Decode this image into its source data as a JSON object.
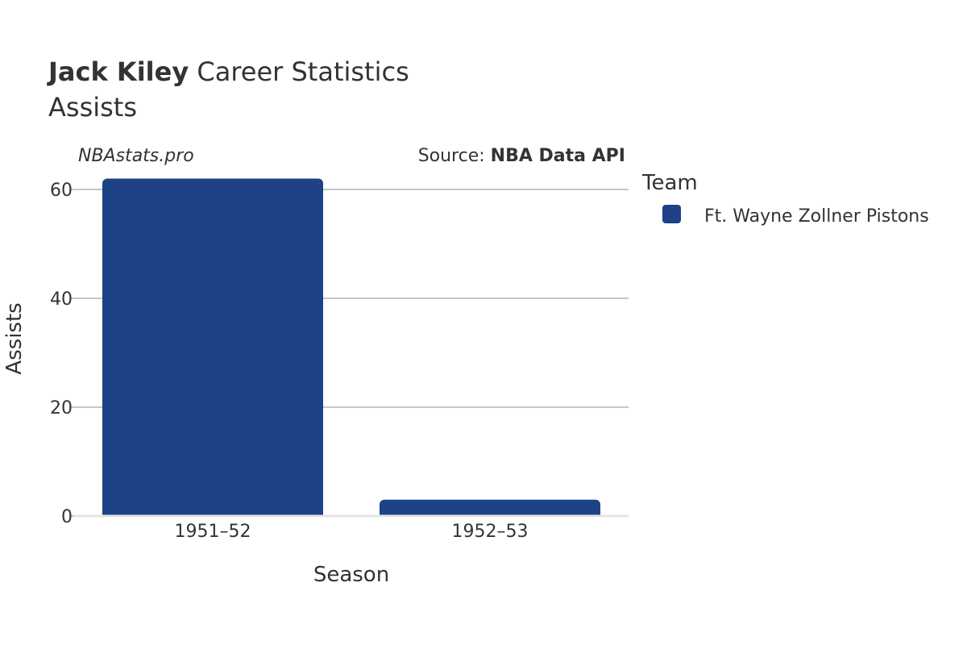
{
  "title": {
    "player": "Jack Kiley",
    "rest": " Career Statistics",
    "subtitle": "Assists"
  },
  "credits": {
    "site": "NBAstats.pro",
    "source_prefix": "Source: ",
    "source_name": "NBA Data API"
  },
  "legend": {
    "title": "Team",
    "items": [
      {
        "label": "Ft. Wayne Zollner Pistons",
        "color": "#1d4286"
      }
    ]
  },
  "chart_data": {
    "type": "bar",
    "categories": [
      "1951–52",
      "1952–53"
    ],
    "series": [
      {
        "name": "Ft. Wayne Zollner Pistons",
        "values": [
          62,
          3
        ],
        "color": "#1d4286"
      }
    ],
    "xlabel": "Season",
    "ylabel": "Assists",
    "ylim": [
      0,
      60
    ],
    "yticks": [
      0,
      20,
      40,
      60
    ],
    "ytick_labels": [
      "0",
      "20",
      "40",
      "60"
    ],
    "grid": true,
    "legend_position": "right"
  }
}
